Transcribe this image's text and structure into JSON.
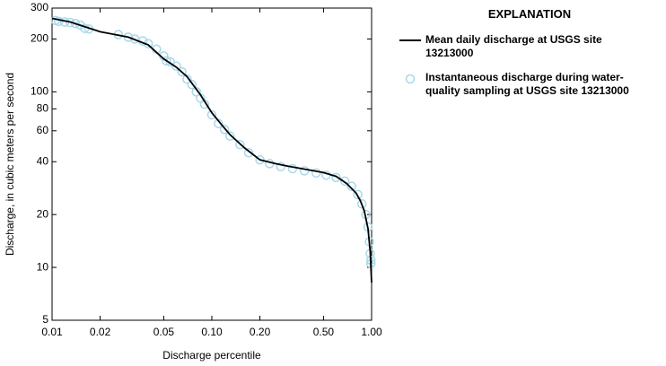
{
  "chart_data": {
    "type": "line",
    "xlabel": "Discharge percentile",
    "ylabel": "Discharge, in cubic meters per second",
    "legend_title": "EXPLANATION",
    "xscale": "log",
    "yscale": "log",
    "xlim": [
      0.01,
      1
    ],
    "ylim": [
      5,
      300
    ],
    "xticks": [
      0.01,
      0.02,
      0.05,
      {
        "value": 0.1,
        "label": "0.10"
      },
      {
        "value": 0.2,
        "label": "0.20"
      },
      {
        "value": 0.5,
        "label": "0.50"
      },
      {
        "value": 1,
        "label": "1.00"
      }
    ],
    "yticks": [
      5,
      10,
      20,
      40,
      60,
      80,
      100,
      200,
      300
    ],
    "series": [
      {
        "name": "Instantaneous discharge during water-quality sampling at USGS site 13213000",
        "type": "scatter",
        "color": "#a8d8ea",
        "x": [
          0.0105,
          0.011,
          0.012,
          0.013,
          0.014,
          0.015,
          0.016,
          0.017,
          0.026,
          0.03,
          0.033,
          0.037,
          0.04,
          0.045,
          0.05,
          0.052,
          0.055,
          0.06,
          0.065,
          0.07,
          0.075,
          0.08,
          0.085,
          0.09,
          0.1,
          0.11,
          0.12,
          0.13,
          0.15,
          0.17,
          0.2,
          0.23,
          0.27,
          0.32,
          0.38,
          0.45,
          0.52,
          0.6,
          0.68,
          0.75,
          0.82,
          0.87,
          0.92,
          0.95,
          0.97,
          0.98,
          0.99,
          0.99
        ],
        "values": [
          255,
          252,
          250,
          248,
          245,
          240,
          230,
          228,
          212,
          205,
          200,
          195,
          188,
          175,
          160,
          150,
          148,
          140,
          130,
          118,
          110,
          100,
          92,
          85,
          74,
          66,
          61,
          56,
          50,
          45,
          41,
          39,
          37.5,
          36.5,
          35.5,
          34.5,
          33.5,
          32.5,
          31,
          29,
          26,
          23,
          20,
          17,
          14,
          12,
          11,
          10.5
        ]
      },
      {
        "name": "Mean daily discharge at USGS site 13213000",
        "type": "line",
        "color": "#000000",
        "x": [
          0.01,
          0.013,
          0.02,
          0.03,
          0.04,
          0.05,
          0.06,
          0.07,
          0.085,
          0.1,
          0.115,
          0.13,
          0.16,
          0.2,
          0.25,
          0.3,
          0.4,
          0.5,
          0.6,
          0.7,
          0.8,
          0.85,
          0.9,
          0.95,
          0.98,
          1
        ],
        "values": [
          262,
          250,
          220,
          205,
          185,
          154,
          138,
          122,
          96,
          76,
          65,
          57,
          48,
          41,
          39,
          37.7,
          36,
          34.7,
          33,
          30,
          26.5,
          24,
          21,
          16.6,
          12.3,
          8.2
        ]
      }
    ]
  }
}
